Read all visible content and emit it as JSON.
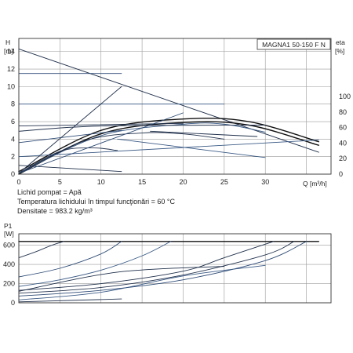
{
  "model_box": "MAGNA1 50-150 F N",
  "context_lines": [
    "Lichid pompat = Apă",
    "Temperatura lichidului în timpul funcţionări = 60 °C",
    "Densitate = 983.2 kg/m³"
  ],
  "chart_data": [
    {
      "type": "line",
      "title": "",
      "xlabel": "Q [m³/h]",
      "xlim": [
        0,
        38
      ],
      "ylim": [
        0,
        15.5
      ],
      "ylim_right": [
        0,
        175
      ],
      "y_axis_left": {
        "label_top": "H",
        "label_unit": "[m]",
        "ticks": [
          "0",
          "2",
          "4",
          "6",
          "8",
          "10",
          "12",
          "14"
        ]
      },
      "y_axis_right": {
        "label_top": "eta",
        "label_unit": "[%]",
        "ticks": [
          "0",
          "20",
          "40",
          "60",
          "80",
          "100"
        ]
      },
      "x_ticks": [
        "0",
        "5",
        "10",
        "15",
        "20",
        "25",
        "30"
      ],
      "grid": true,
      "series": [
        {
          "x": [
            0,
            36.5
          ],
          "y": [
            14.3,
            2.5
          ]
        },
        {
          "x": [
            0,
            10,
            20,
            28,
            36.5
          ],
          "y": [
            0.3,
            5.0,
            6.3,
            6.0,
            3.7
          ]
        },
        {
          "x": [
            0,
            10,
            20,
            28,
            36.5
          ],
          "y": [
            0.0,
            4.6,
            5.9,
            5.6,
            3.3
          ]
        },
        {
          "x": [
            0,
            10,
            20,
            25,
            30
          ],
          "y": [
            0.1,
            4.4,
            5.7,
            5.7,
            4.8
          ]
        },
        {
          "x": [
            0,
            8,
            15,
            20,
            25
          ],
          "y": [
            0.1,
            3.8,
            4.7,
            4.6,
            4.0
          ]
        },
        {
          "x": [
            0,
            5,
            9,
            12
          ],
          "y": [
            0.1,
            2.6,
            3.0,
            2.7
          ]
        },
        {
          "x": [
            0,
            12.5
          ],
          "y": [
            11.5,
            11.5
          ]
        },
        {
          "x": [
            0,
            25
          ],
          "y": [
            8.0,
            8.0
          ]
        },
        {
          "x": [
            0,
            20
          ],
          "y": [
            5.5,
            5.8
          ]
        },
        {
          "x": [
            0,
            10,
            30
          ],
          "y": [
            4.9,
            5.5,
            5.6
          ]
        },
        {
          "x": [
            0,
            12.5
          ],
          "y": [
            3.6,
            5.0
          ]
        },
        {
          "x": [
            0,
            36.5
          ],
          "y": [
            2.0,
            3.9
          ]
        },
        {
          "x": [
            0,
            12.5
          ],
          "y": [
            1.0,
            0.3
          ]
        },
        {
          "x": [
            0,
            12.5
          ],
          "y": [
            0.1,
            10.0
          ]
        },
        {
          "x": [
            0,
            20
          ],
          "y": [
            0.1,
            7.0
          ]
        },
        {
          "x": [
            12,
            30
          ],
          "y": [
            4.0,
            1.9
          ]
        },
        {
          "x": [
            16,
            29
          ],
          "y": [
            4.9,
            4.3
          ]
        }
      ]
    },
    {
      "type": "line",
      "title": "",
      "xlabel": "",
      "xlim": [
        0,
        38
      ],
      "ylim": [
        0,
        720
      ],
      "y_axis_left": {
        "label_top": "P1",
        "label_unit": "[W]",
        "ticks": [
          "0",
          "200",
          "400",
          "600"
        ]
      },
      "grid": true,
      "series": [
        {
          "x": [
            0,
            36.5
          ],
          "y": [
            640,
            640
          ]
        },
        {
          "x": [
            0,
            2,
            4,
            5.5
          ],
          "y": [
            470,
            530,
            600,
            640
          ]
        },
        {
          "x": [
            0,
            5,
            10,
            12.5
          ],
          "y": [
            270,
            360,
            510,
            640
          ]
        },
        {
          "x": [
            0,
            5,
            10,
            15,
            18.5
          ],
          "y": [
            170,
            240,
            340,
            490,
            640
          ]
        },
        {
          "x": [
            0,
            10,
            20,
            25,
            31
          ],
          "y": [
            130,
            200,
            330,
            470,
            640
          ]
        },
        {
          "x": [
            0,
            10,
            20,
            30,
            33.5
          ],
          "y": [
            100,
            160,
            290,
            500,
            640
          ]
        },
        {
          "x": [
            0,
            10,
            20,
            30,
            35
          ],
          "y": [
            70,
            130,
            240,
            440,
            640
          ]
        },
        {
          "x": [
            0,
            10,
            20,
            30
          ],
          "y": [
            30,
            110,
            280,
            390
          ]
        },
        {
          "x": [
            0,
            12,
            25
          ],
          "y": [
            120,
            320,
            380
          ]
        },
        {
          "x": [
            0,
            12.5
          ],
          "y": [
            10,
            40
          ]
        }
      ]
    }
  ]
}
